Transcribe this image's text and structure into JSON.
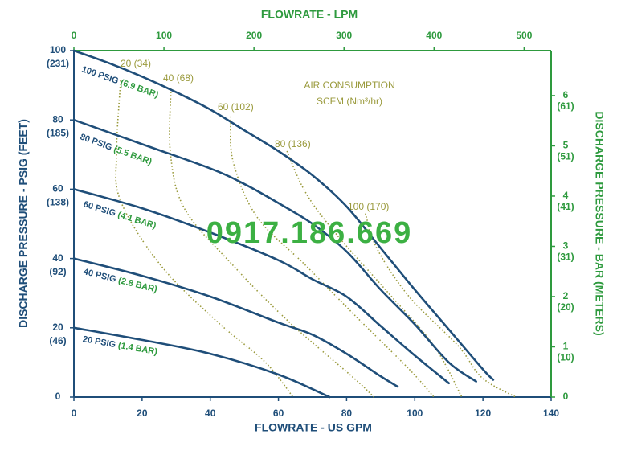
{
  "chart_data": {
    "type": "line",
    "x_label": "FLOWRATE - US GPM",
    "x2_label": "FLOWRATE - LPM",
    "y_label": "DISCHARGE PRESSURE - PSIG (FEET)",
    "y2_label": "DISCHARGE PRESSURE - BAR (METERS)",
    "xlim": [
      0,
      140
    ],
    "xticks": [
      0,
      20,
      40,
      60,
      80,
      100,
      120,
      140
    ],
    "x2lim": [
      0,
      530
    ],
    "x2ticks": [
      0,
      100,
      200,
      300,
      400,
      500
    ],
    "ylim": [
      0,
      100
    ],
    "yticks": [
      0,
      {
        "value": 20,
        "label": "20",
        "sublabel": "(46)"
      },
      {
        "value": 40,
        "label": "40",
        "sublabel": "(92)"
      },
      {
        "value": 60,
        "label": "60",
        "sublabel": "(138)"
      },
      {
        "value": 80,
        "label": "80",
        "sublabel": "(185)"
      },
      {
        "value": 100,
        "label": "100",
        "sublabel": "(231)"
      }
    ],
    "y2lim": [
      0,
      6.895
    ],
    "y2ticks": [
      0,
      {
        "value": 1,
        "label": "1",
        "sublabel": "(10)"
      },
      {
        "value": 2,
        "label": "2",
        "sublabel": "(20)"
      },
      {
        "value": 3,
        "label": "3",
        "sublabel": "(31)"
      },
      {
        "value": 4,
        "label": "4",
        "sublabel": "(41)"
      },
      {
        "value": 5,
        "label": "5",
        "sublabel": "(51)"
      },
      {
        "value": 6,
        "label": "6",
        "sublabel": "(61)"
      }
    ],
    "series": [
      {
        "name": "100 PSIG",
        "bar_label": "(6.9 BAR)",
        "color": "#1f4e79",
        "x": [
          0,
          10,
          20,
          30,
          40,
          50,
          60,
          70,
          80,
          90,
          100,
          110,
          120,
          123
        ],
        "values": [
          100,
          96.5,
          92.5,
          88,
          83,
          77,
          71,
          64,
          55,
          43,
          31,
          19.5,
          8,
          5
        ]
      },
      {
        "name": "80 PSIG",
        "bar_label": "(5.5 BAR)",
        "color": "#1f4e79",
        "x": [
          0,
          20,
          40,
          50,
          60,
          70,
          80,
          90,
          100,
          110,
          118
        ],
        "values": [
          80,
          73,
          66,
          61.5,
          56,
          50,
          42,
          31,
          21,
          10,
          4.5
        ]
      },
      {
        "name": "60 PSIG",
        "bar_label": "(4.1 BAR)",
        "color": "#1f4e79",
        "x": [
          0,
          20,
          40,
          60,
          70,
          80,
          90,
          100,
          110
        ],
        "values": [
          60,
          54.5,
          47.5,
          39.5,
          34,
          29,
          20.5,
          12,
          4
        ]
      },
      {
        "name": "40 PSIG",
        "bar_label": "(2.8 BAR)",
        "color": "#1f4e79",
        "x": [
          0,
          20,
          40,
          60,
          70,
          80,
          90,
          95
        ],
        "values": [
          40,
          35,
          29,
          21.5,
          18,
          12.5,
          6,
          3
        ]
      },
      {
        "name": "20 PSIG",
        "bar_label": "(1.4 BAR)",
        "color": "#1f4e79",
        "x": [
          0,
          20,
          40,
          60,
          75
        ],
        "values": [
          20,
          16.5,
          12.5,
          6.5,
          0
        ]
      }
    ],
    "air_consumption": {
      "title": "AIR CONSUMPTION",
      "subtitle": "SCFM (Nm³/hr)",
      "color": "#9a9a3c",
      "series": [
        {
          "name": "20 (34)",
          "x": [
            13.7,
            12.5,
            13.7,
            25.5,
            42,
            56,
            64.3
          ],
          "values": [
            91.4,
            70.5,
            56.6,
            38,
            21.8,
            10.2,
            0
          ]
        },
        {
          "name": "40 (68)",
          "x": [
            28.5,
            28.3,
            32.5,
            46.7,
            63,
            82,
            88
          ],
          "values": [
            89,
            70.5,
            54.3,
            38,
            21.8,
            5.6,
            0
          ]
        },
        {
          "name": "60 (102)",
          "x": [
            46,
            46.7,
            53.7,
            68,
            82,
            98.5,
            105.6
          ],
          "values": [
            81,
            68,
            52,
            38,
            24,
            7.9,
            0
          ]
        },
        {
          "name": "80 (136)",
          "x": [
            62.5,
            68,
            77,
            91.4,
            105.6,
            113.8
          ],
          "values": [
            71,
            59,
            47,
            31,
            14.8,
            0
          ]
        },
        {
          "name": "100 (170)",
          "x": [
            85.5,
            89,
            98.5,
            112.7,
            119.7,
            129.6
          ],
          "values": [
            53,
            42.7,
            28.8,
            14.8,
            5.6,
            0
          ]
        }
      ]
    },
    "watermark": "0917.186.669"
  }
}
